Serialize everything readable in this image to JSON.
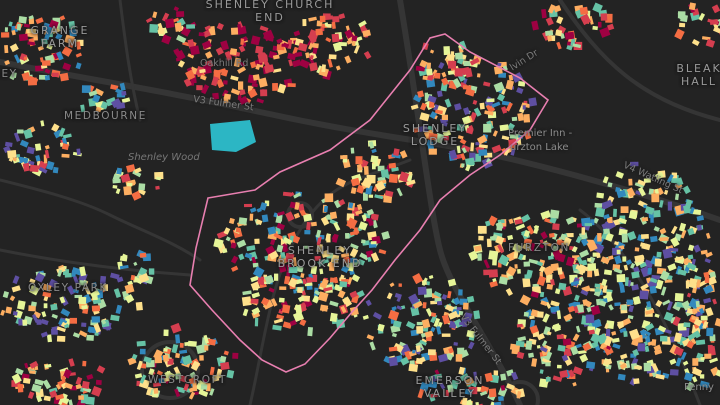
{
  "map": {
    "colors": {
      "background": "#232323",
      "road": "#353535",
      "boundary": "#e87fb0",
      "water": "#2cb6c4",
      "ramp": [
        "#5e4fa2",
        "#3288bd",
        "#66c2a5",
        "#abdda4",
        "#e6f598",
        "#fee08b",
        "#fdae61",
        "#f46d43",
        "#d53e4f",
        "#9e0142"
      ]
    },
    "area_labels": [
      {
        "id": "grange-farm",
        "text": "GRANGE FARM"
      },
      {
        "id": "shenley-church-end",
        "text": "SHENLEY CHURCH END"
      },
      {
        "id": "bleak-hall",
        "text": "BLEAK HALL"
      },
      {
        "id": "medbourne",
        "text": "MEDBOURNE"
      },
      {
        "id": "shenley-lodge",
        "text": "SHENLEY LODGE"
      },
      {
        "id": "furzton",
        "text": "FURZTON"
      },
      {
        "id": "shenley-brook-end",
        "text": "SHENLEY BROOK END"
      },
      {
        "id": "oxley-park",
        "text": "OXLEY PARK"
      },
      {
        "id": "westcroft",
        "text": "WESTCROFT"
      },
      {
        "id": "emerson-valley",
        "text": "EMERSON VALLEY"
      },
      {
        "id": "ley",
        "text": "LEY"
      }
    ],
    "road_labels": [
      {
        "id": "oakhill-rd",
        "text": "Oakhill Rd"
      },
      {
        "id": "v3-fulmer-st-north",
        "text": "V3 Fulmer St"
      },
      {
        "id": "v3-fulmer-st-south",
        "text": "V3 Fulmer St"
      },
      {
        "id": "v4-watling-st",
        "text": "V4 Watling St"
      },
      {
        "id": "tylers-dr",
        "text": "lvin Dr"
      }
    ],
    "place_labels": [
      {
        "id": "premier-inn",
        "text": "Premier Inn -"
      },
      {
        "id": "furzton-lake",
        "text": "urzton Lake"
      },
      {
        "id": "shenley-wood",
        "text": "Shenley Wood"
      },
      {
        "id": "fenny",
        "text": "Fenny"
      }
    ]
  }
}
